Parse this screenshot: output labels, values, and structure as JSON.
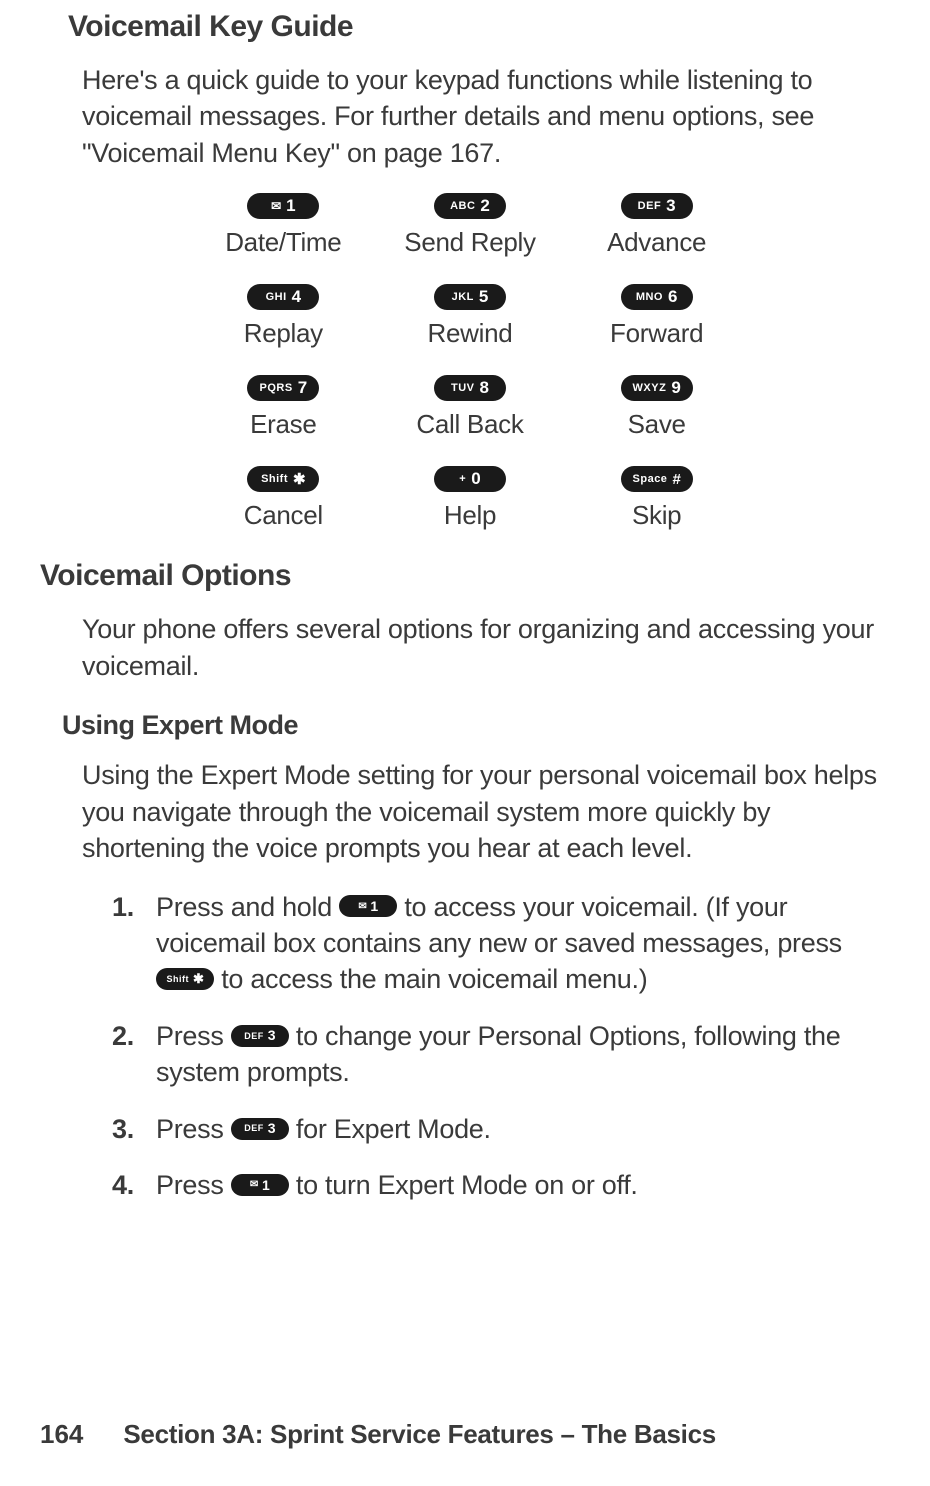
{
  "heading1": "Voicemail Key Guide",
  "intro1": "Here's a quick guide to your keypad functions while listening to voicemail messages. For further details and menu options, see \"Voicemail Menu Key\" on page 167.",
  "keypad": [
    {
      "letters": "",
      "envelope": true,
      "digit": "1",
      "symbol": "",
      "label": "Date/Time"
    },
    {
      "letters": "ABC",
      "envelope": false,
      "digit": "2",
      "symbol": "",
      "label": "Send Reply"
    },
    {
      "letters": "DEF",
      "envelope": false,
      "digit": "3",
      "symbol": "",
      "label": "Advance"
    },
    {
      "letters": "GHI",
      "envelope": false,
      "digit": "4",
      "symbol": "",
      "label": "Replay"
    },
    {
      "letters": "JKL",
      "envelope": false,
      "digit": "5",
      "symbol": "",
      "label": "Rewind"
    },
    {
      "letters": "MNO",
      "envelope": false,
      "digit": "6",
      "symbol": "",
      "label": "Forward"
    },
    {
      "letters": "PQRS",
      "envelope": false,
      "digit": "7",
      "symbol": "",
      "label": "Erase"
    },
    {
      "letters": "TUV",
      "envelope": false,
      "digit": "8",
      "symbol": "",
      "label": "Call Back"
    },
    {
      "letters": "WXYZ",
      "envelope": false,
      "digit": "9",
      "symbol": "",
      "label": "Save"
    },
    {
      "letters": "Shift",
      "envelope": false,
      "digit": "",
      "symbol": "✱",
      "label": "Cancel"
    },
    {
      "letters": "",
      "envelope": false,
      "digit": "0",
      "symbol": "+",
      "symbol_before": true,
      "label": "Help"
    },
    {
      "letters": "Space",
      "envelope": false,
      "digit": "",
      "symbol": "#",
      "label": "Skip"
    }
  ],
  "heading2": "Voicemail Options",
  "intro2": "Your phone offers several options for organizing and accessing your voicemail.",
  "subheading": "Using Expert Mode",
  "expert_intro": "Using the Expert Mode setting for your personal voicemail box helps you navigate through the voicemail system more quickly by shortening the voice prompts you hear at each level.",
  "steps": {
    "s1": {
      "num": "1.",
      "text_a": "Press and hold ",
      "key1": {
        "envelope": true,
        "digit": "1"
      },
      "text_b": " to access your voicemail. (If your voicemail box contains any new or saved messages, press ",
      "key2": {
        "letters": "Shift",
        "symbol": "✱"
      },
      "text_c": " to access the main voicemail menu.)"
    },
    "s2": {
      "num": "2.",
      "text_a": "Press ",
      "key1": {
        "letters": "DEF",
        "digit": "3"
      },
      "text_b": " to change your Personal Options, following the system prompts."
    },
    "s3": {
      "num": "3.",
      "text_a": "Press ",
      "key1": {
        "letters": "DEF",
        "digit": "3"
      },
      "text_b": " for Expert Mode."
    },
    "s4": {
      "num": "4.",
      "text_a": "Press ",
      "key1": {
        "envelope": true,
        "digit": "1"
      },
      "text_b": " to turn Expert Mode on or off."
    }
  },
  "footer": {
    "page": "164",
    "section": "Section 3A: Sprint Service Features – The Basics"
  }
}
